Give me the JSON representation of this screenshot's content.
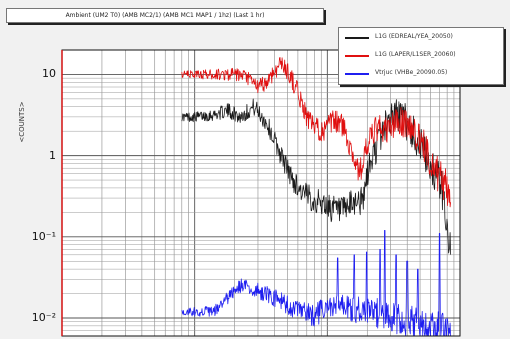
{
  "title": "Ambient (UM2 T0) (AMB MC2/1) (AMB MC1 MAP1 / 1hz) (Last 1 hr)",
  "ylabel": "<COUNTS>",
  "chart_data": {
    "type": "line",
    "title": "Ambient (UM2 T0) (AMB MC2/1) (AMB MC1 MAP1 / 1hz) (Last 1 hr)",
    "ylabel": "<COUNTS>",
    "xlabel": "",
    "xscale": "log",
    "yscale": "log",
    "xlim": [
      1,
      1000
    ],
    "ylim": [
      0.006,
      20
    ],
    "grid": true,
    "legend_position": "top-right",
    "y_tick_labels": [
      {
        "value": 10,
        "label": "10"
      },
      {
        "value": 1,
        "label": "1"
      },
      {
        "value": 0.1,
        "label": "10⁻¹"
      },
      {
        "value": 0.01,
        "label": "10⁻²"
      }
    ],
    "series": [
      {
        "name": "L1G (EDREAL/YEA_20050)",
        "color": "#1a1a1a",
        "noise": 0.35,
        "points": [
          [
            8,
            3.0
          ],
          [
            10,
            3.0
          ],
          [
            14,
            3.2
          ],
          [
            18,
            3.6
          ],
          [
            22,
            3.0
          ],
          [
            28,
            4.0
          ],
          [
            35,
            2.5
          ],
          [
            45,
            1.0
          ],
          [
            55,
            0.5
          ],
          [
            65,
            0.35
          ],
          [
            80,
            0.28
          ],
          [
            95,
            0.25
          ],
          [
            110,
            0.22
          ],
          [
            130,
            0.2
          ],
          [
            150,
            0.24
          ],
          [
            170,
            0.3
          ],
          [
            185,
            0.25
          ],
          [
            200,
            0.6
          ],
          [
            230,
            1.2
          ],
          [
            260,
            2.0
          ],
          [
            300,
            3.0
          ],
          [
            350,
            3.2
          ],
          [
            400,
            2.5
          ],
          [
            450,
            1.8
          ],
          [
            500,
            1.4
          ],
          [
            550,
            1.0
          ],
          [
            600,
            0.8
          ],
          [
            650,
            0.6
          ],
          [
            700,
            0.5
          ],
          [
            750,
            0.3
          ],
          [
            800,
            0.15
          ],
          [
            850,
            0.06
          ]
        ]
      },
      {
        "name": "L1G (LAPER/L1SER_20060)",
        "color": "#e01010",
        "noise": 0.3,
        "points": [
          [
            8,
            10
          ],
          [
            14,
            10
          ],
          [
            20,
            10
          ],
          [
            25,
            9
          ],
          [
            30,
            7
          ],
          [
            35,
            8
          ],
          [
            40,
            11
          ],
          [
            45,
            14
          ],
          [
            52,
            10
          ],
          [
            60,
            6
          ],
          [
            70,
            3
          ],
          [
            80,
            2.2
          ],
          [
            95,
            2.0
          ],
          [
            110,
            2.6
          ],
          [
            125,
            2.6
          ],
          [
            140,
            1.8
          ],
          [
            160,
            0.9
          ],
          [
            175,
            0.6
          ],
          [
            190,
            1.0
          ],
          [
            210,
            1.6
          ],
          [
            240,
            2.2
          ],
          [
            280,
            2.0
          ],
          [
            320,
            2.5
          ],
          [
            380,
            2.6
          ],
          [
            450,
            2.0
          ],
          [
            520,
            1.4
          ],
          [
            600,
            0.9
          ],
          [
            680,
            0.6
          ],
          [
            760,
            0.45
          ],
          [
            850,
            0.3
          ]
        ]
      },
      {
        "name": "Vtrjuc (VHBe_20090.05)",
        "color": "#1f1ff0",
        "noise": 0.32,
        "points": [
          [
            8,
            0.012
          ],
          [
            14,
            0.012
          ],
          [
            18,
            0.018
          ],
          [
            22,
            0.025
          ],
          [
            28,
            0.022
          ],
          [
            35,
            0.02
          ],
          [
            45,
            0.016
          ],
          [
            60,
            0.012
          ],
          [
            80,
            0.011
          ],
          [
            100,
            0.013
          ],
          [
            130,
            0.014
          ],
          [
            160,
            0.013
          ],
          [
            200,
            0.012
          ],
          [
            260,
            0.011
          ],
          [
            330,
            0.01
          ],
          [
            420,
            0.009
          ],
          [
            520,
            0.008
          ],
          [
            620,
            0.007
          ],
          [
            720,
            0.007
          ],
          [
            850,
            0.006
          ]
        ],
        "spikes": [
          [
            120,
            0.055
          ],
          [
            160,
            0.06
          ],
          [
            197,
            0.065
          ],
          [
            250,
            0.07
          ],
          [
            270,
            0.12
          ],
          [
            330,
            0.06
          ],
          [
            400,
            0.05
          ],
          [
            480,
            0.04
          ],
          [
            700,
            0.11
          ]
        ]
      }
    ]
  }
}
